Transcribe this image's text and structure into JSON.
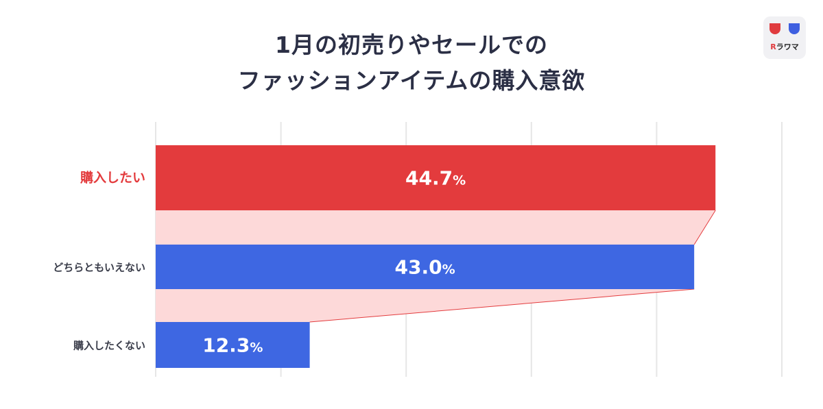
{
  "title_lines": [
    "1月の初売りやセールでの",
    "ファッションアイテムの購入意欲"
  ],
  "logo": {
    "mark": "R",
    "text": "ラワマ"
  },
  "colors": {
    "highlight": "#e33b3d",
    "bar": "#3e67e2",
    "connector": "#fdd9d9",
    "connector_line": "#e33b3d",
    "grid": "#e6e6e6",
    "label_default": "#3a3d4a",
    "value_text": "#ffffff"
  },
  "chart_data": {
    "type": "bar",
    "orientation": "horizontal",
    "title": "1月の初売りやセールでのファッションアイテムの購入意欲",
    "categories": [
      "購入したい",
      "どちらともいえない",
      "購入したくない"
    ],
    "values": [
      44.7,
      43.0,
      12.3
    ],
    "value_labels": [
      "44.7",
      "43.0",
      "12.3"
    ],
    "unit": "%",
    "highlight_index": 0,
    "xlim": [
      0,
      50
    ],
    "grid": true
  }
}
